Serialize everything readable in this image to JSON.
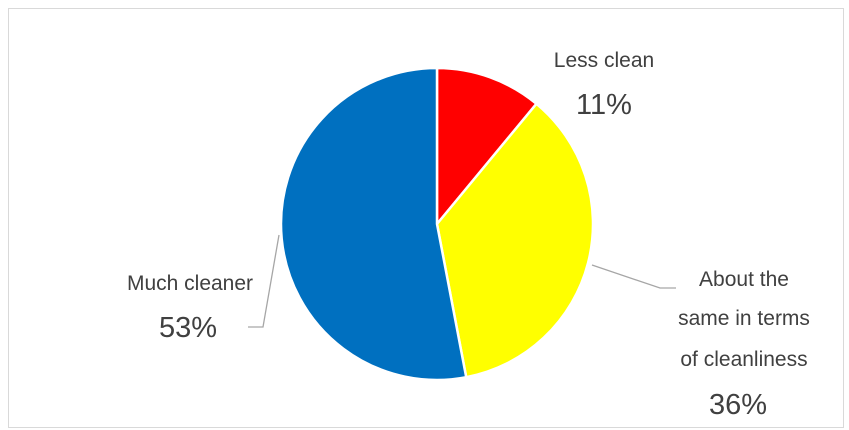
{
  "chart_data": {
    "type": "pie",
    "title": "",
    "categories": [
      "Less clean",
      "About the same in terms of cleanliness",
      "Much cleaner"
    ],
    "values": [
      11,
      36,
      53
    ],
    "unit": "%",
    "colors": [
      "#ff0000",
      "#ffff00",
      "#0070c0"
    ],
    "labels": [
      {
        "lines": [
          "Less clean"
        ],
        "pct": "11%"
      },
      {
        "lines": [
          "About the",
          "same in terms",
          "of cleanliness"
        ],
        "pct": "36%"
      },
      {
        "lines": [
          "Much cleaner"
        ],
        "pct": "53%"
      }
    ],
    "legend": "none",
    "start_angle_deg": 0,
    "direction": "clockwise",
    "slice_border_color": "#ffffff"
  }
}
